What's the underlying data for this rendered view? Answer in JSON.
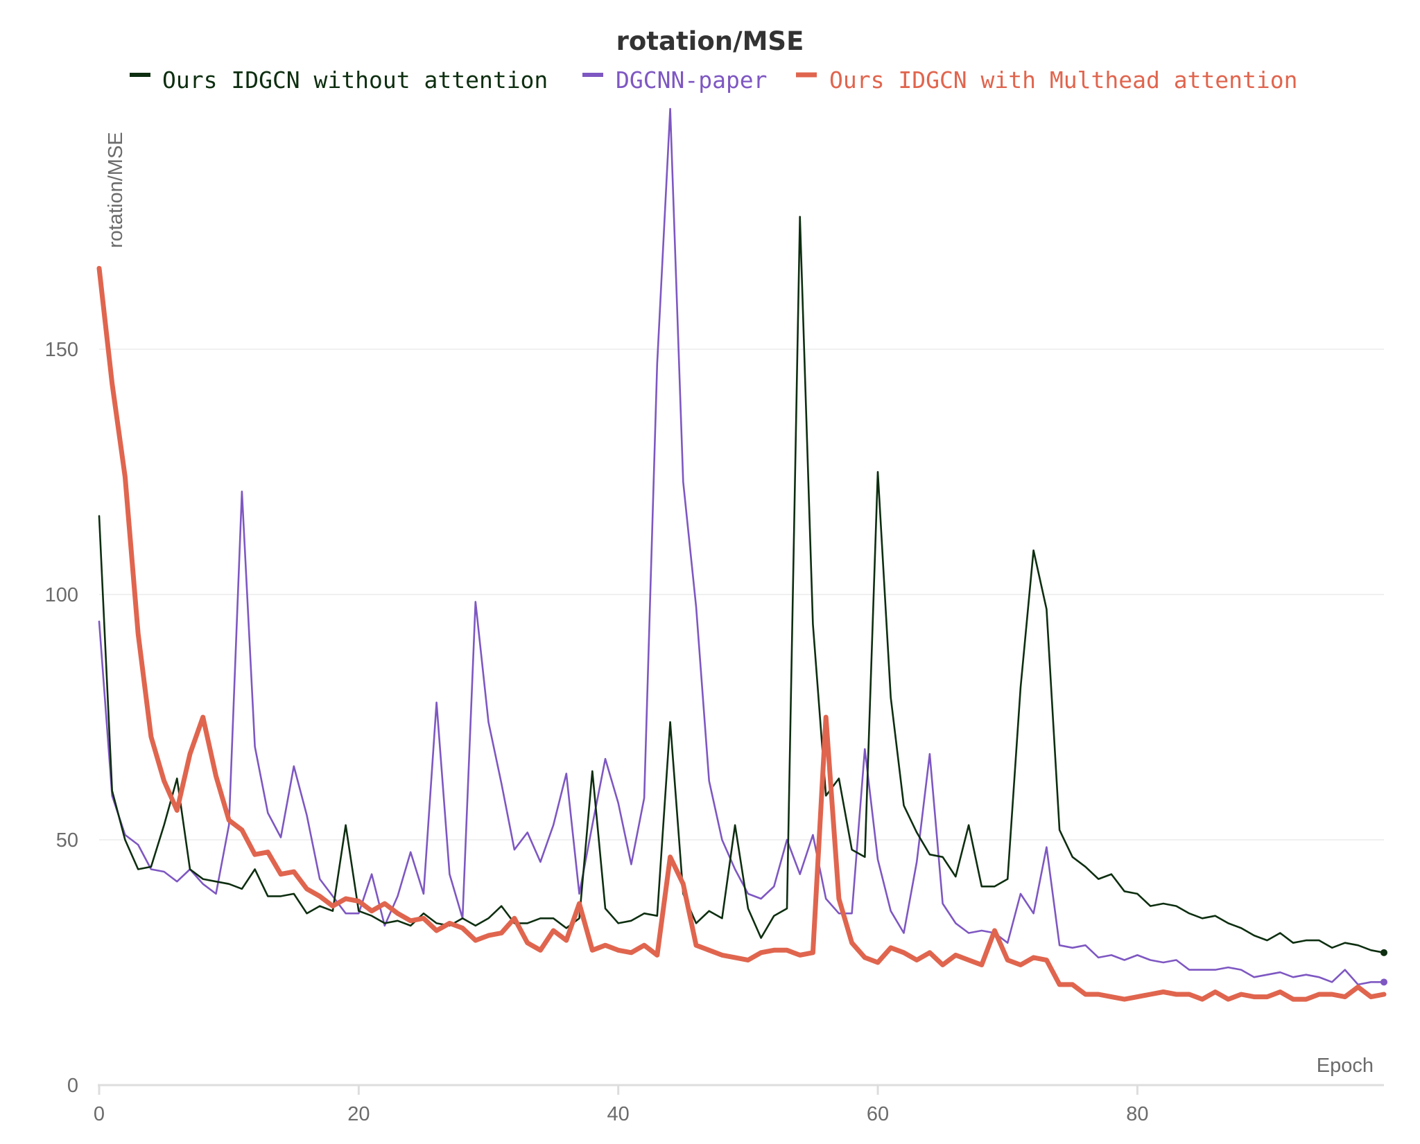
{
  "chart_data": {
    "type": "line",
    "title": "rotation/MSE",
    "xlabel": "Epoch",
    "ylabel": "rotation/MSE",
    "xlim": [
      0,
      99
    ],
    "ylim": [
      0,
      200
    ],
    "x_ticks": [
      0,
      20,
      40,
      60,
      80
    ],
    "y_ticks": [
      0,
      50,
      100,
      150
    ],
    "grid": true,
    "legend_position": "top",
    "series": [
      {
        "name": "Ours IDGCN without attention",
        "color": "#0d2e10",
        "width": "thin",
        "values": [
          116,
          60,
          50,
          44,
          44.5,
          53,
          62.5,
          44,
          42,
          41.5,
          41,
          40,
          44,
          38.5,
          38.5,
          39,
          35,
          36.5,
          35.5,
          53,
          35.5,
          34.5,
          33,
          33.5,
          32.5,
          35,
          33,
          32.5,
          34,
          32.5,
          34,
          36.5,
          33,
          33,
          34,
          34,
          32,
          34,
          64,
          36,
          33,
          33.5,
          35,
          34.5,
          74,
          39,
          33,
          35.5,
          34,
          53,
          36,
          30,
          34.5,
          36,
          177,
          94,
          59,
          62.5,
          48,
          46.5,
          125,
          79,
          57,
          51.5,
          47,
          46.5,
          42.5,
          53,
          40.5,
          40.5,
          42,
          81,
          109,
          97,
          52,
          46.5,
          44.5,
          42,
          43,
          39.5,
          39,
          36.5,
          37,
          36.5,
          35,
          34,
          34.5,
          33,
          32,
          30.5,
          29.5,
          31,
          29,
          29.5,
          29.5,
          28,
          29,
          28.5,
          27.5,
          27
        ]
      },
      {
        "name": "DGCNN-paper",
        "color": "#7e57c2",
        "width": "thin",
        "values": [
          94.5,
          59,
          51,
          49,
          44,
          43.5,
          41.5,
          44,
          41,
          39,
          53,
          121,
          69,
          55.5,
          50.5,
          65,
          55,
          42,
          38.5,
          35,
          35,
          43,
          32.5,
          38.5,
          47.5,
          39,
          78,
          43,
          34,
          98.5,
          74,
          61.5,
          48,
          51.5,
          45.5,
          53,
          63.5,
          39,
          53,
          66.5,
          57.5,
          45,
          58.5,
          147,
          199,
          123,
          97.5,
          62,
          50,
          44,
          39,
          38,
          40.5,
          50,
          43,
          51,
          38,
          35,
          35,
          68.5,
          46,
          35.5,
          31,
          45.5,
          67.5,
          37,
          33,
          31,
          31.5,
          31,
          29,
          39,
          35,
          48.5,
          28.5,
          28,
          28.5,
          26,
          26.5,
          25.5,
          26.5,
          25.5,
          25,
          25.5,
          23.5,
          23.5,
          23.5,
          24,
          23.5,
          22,
          22.5,
          23,
          22,
          22.5,
          22,
          21,
          23.5,
          20.5,
          21,
          21
        ]
      },
      {
        "name": "Ours IDGCN with Multhead attention",
        "color": "#e0654e",
        "width": "thick",
        "values": [
          166.5,
          143,
          124,
          92,
          71,
          62,
          56,
          67.5,
          75,
          63,
          54,
          52,
          47,
          47.5,
          43,
          43.5,
          40,
          38.5,
          36.5,
          38,
          37.5,
          35.5,
          37,
          35,
          33.5,
          34,
          31.5,
          33,
          32,
          29.5,
          30.5,
          31,
          34,
          29,
          27.5,
          31.5,
          29.5,
          37,
          27.5,
          28.5,
          27.5,
          27,
          28.5,
          26.5,
          46.5,
          41,
          28.5,
          27.5,
          26.5,
          26,
          25.5,
          27,
          27.5,
          27.5,
          26.5,
          27,
          75,
          38,
          29,
          26,
          25,
          28,
          27,
          25.5,
          27,
          24.5,
          26.5,
          25.5,
          24.5,
          31.5,
          25.5,
          24.5,
          26,
          25.5,
          20.5,
          20.5,
          18.5,
          18.5,
          18,
          17.5,
          18,
          18.5,
          19,
          18.5,
          18.5,
          17.5,
          19,
          17.5,
          18.5,
          18,
          18,
          19,
          17.5,
          17.5,
          18.5,
          18.5,
          18,
          20,
          18,
          18.5
        ]
      }
    ]
  }
}
